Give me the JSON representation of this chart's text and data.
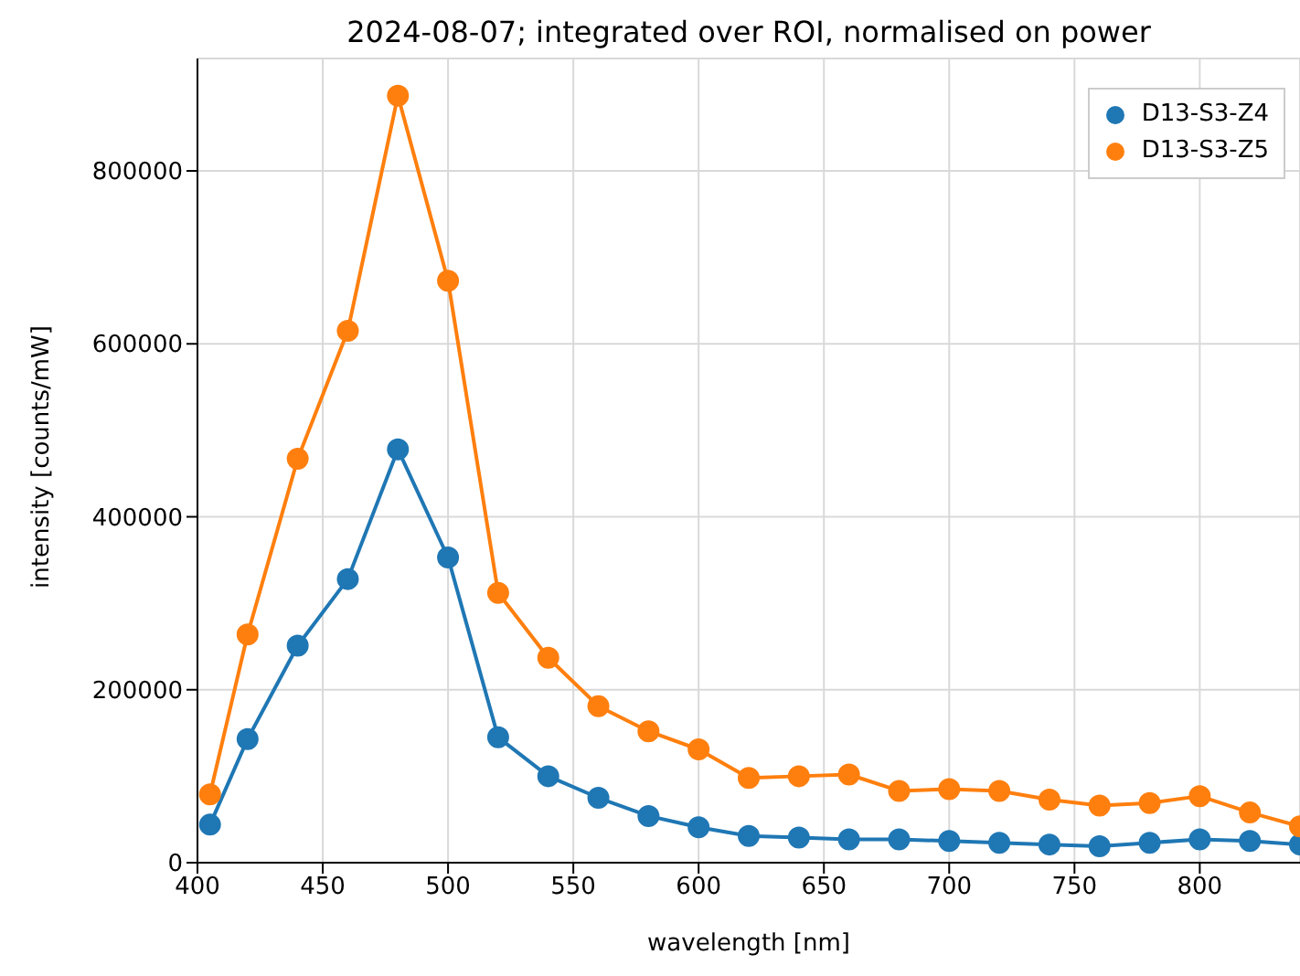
{
  "chart_data": {
    "type": "line",
    "title": "2024-08-07; integrated over ROI, normalised on power",
    "xlabel": "wavelength [nm]",
    "ylabel": "intensity [counts/mW]",
    "x": [
      405,
      420,
      440,
      460,
      480,
      500,
      520,
      540,
      560,
      580,
      600,
      620,
      640,
      660,
      680,
      700,
      720,
      740,
      760,
      780,
      800,
      820,
      840
    ],
    "series": [
      {
        "name": "D13-S3-Z4",
        "color": "#1f77b4",
        "values": [
          44000,
          143000,
          251000,
          328000,
          478000,
          353000,
          145000,
          100000,
          75000,
          54000,
          41000,
          31000,
          29000,
          27000,
          27000,
          25000,
          23000,
          21000,
          19000,
          23000,
          27000,
          25000,
          21000
        ]
      },
      {
        "name": "D13-S3-Z5",
        "color": "#ff7f0e",
        "values": [
          79000,
          264000,
          467000,
          615000,
          887000,
          673000,
          312000,
          237000,
          181000,
          152000,
          131000,
          98000,
          100000,
          102000,
          83000,
          85000,
          83000,
          73000,
          66000,
          69000,
          77000,
          58000,
          42000
        ]
      }
    ],
    "xlim": [
      400,
      840
    ],
    "xticks": [
      400,
      450,
      500,
      550,
      600,
      650,
      700,
      750,
      800
    ],
    "ylim": [
      0,
      930000
    ],
    "yticks": [
      0,
      200000,
      400000,
      600000,
      800000
    ],
    "grid": true,
    "legend": "top right",
    "marker": "circle",
    "line_style": "solid"
  }
}
